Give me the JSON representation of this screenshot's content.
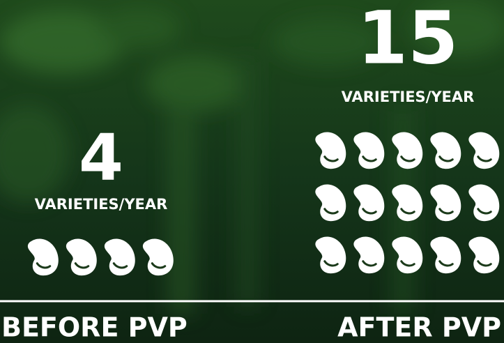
{
  "chart_data": {
    "type": "pictograph",
    "categories": [
      "BEFORE PVP",
      "AFTER PVP"
    ],
    "values": [
      4,
      15
    ],
    "unit_label": "VARIETIES/YEAR",
    "color": "#ffffff"
  }
}
